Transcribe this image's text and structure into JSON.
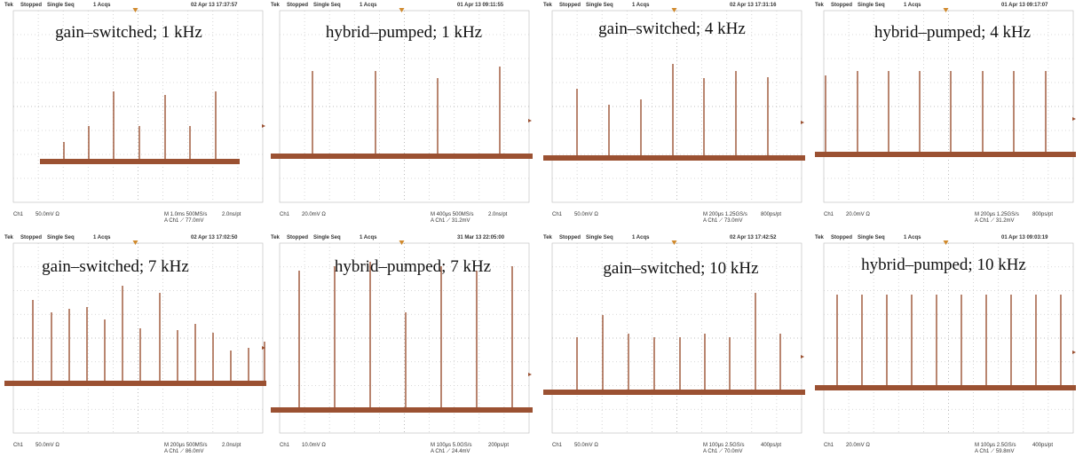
{
  "panels": [
    {
      "header": {
        "tek": "Tek",
        "status": "Stopped",
        "mode": "Single Seq",
        "acqs": "1 Acqs",
        "date": "02 Apr 13 17:37:57"
      },
      "title": "gain–switched; 1 kHz",
      "footer": {
        "channel": "Ch1",
        "scale": "50.0mV Ω",
        "timebase": "M 1.0ms 500MS/s",
        "resolution": "2.0ns/pt",
        "trigger": "A Ch1 ⟋ 77.0mV"
      }
    },
    {
      "header": {
        "tek": "Tek",
        "status": "Stopped",
        "mode": "Single Seq",
        "acqs": "1 Acqs",
        "date": "01 Apr 13 09:11:55"
      },
      "title": "hybrid–pumped; 1 kHz",
      "footer": {
        "channel": "Ch1",
        "scale": "20.0mV Ω",
        "timebase": "M 400μs 500MS/s",
        "resolution": "2.0ns/pt",
        "trigger": "A Ch1 ⟋ 31.2mV"
      }
    },
    {
      "header": {
        "tek": "Tek",
        "status": "Stopped",
        "mode": "Single Seq",
        "acqs": "1 Acqs",
        "date": "02 Apr 13 17:31:16"
      },
      "title": "gain–switched; 4 kHz",
      "footer": {
        "channel": "Ch1",
        "scale": "50.0mV Ω",
        "timebase": "M 200μs 1.25GS/s",
        "resolution": "800ps/pt",
        "trigger": "A Ch1 ⟋ 73.0mV"
      }
    },
    {
      "header": {
        "tek": "Tek",
        "status": "Stopped",
        "mode": "Single Seq",
        "acqs": "1 Acqs",
        "date": "01 Apr 13 09:17:07"
      },
      "title": "hybrid–pumped; 4 kHz",
      "footer": {
        "channel": "Ch1",
        "scale": "20.0mV Ω",
        "timebase": "M 200μs 1.25GS/s",
        "resolution": "800ps/pt",
        "trigger": "A Ch1 ⟋ 31.2mV"
      }
    },
    {
      "header": {
        "tek": "Tek",
        "status": "Stopped",
        "mode": "Single Seq",
        "acqs": "1 Acqs",
        "date": "02 Apr 13 17:02:50"
      },
      "title": "gain–switched; 7 kHz",
      "footer": {
        "channel": "Ch1",
        "scale": "50.0mV Ω",
        "timebase": "M 200μs 500MS/s",
        "resolution": "2.0ns/pt",
        "trigger": "A Ch1 ⟋ 86.0mV"
      }
    },
    {
      "header": {
        "tek": "Tek",
        "status": "Stopped",
        "mode": "Single Seq",
        "acqs": "1 Acqs",
        "date": "31 Mar 13 22:05:00"
      },
      "title": "hybrid–pumped; 7 kHz",
      "footer": {
        "channel": "Ch1",
        "scale": "10.0mV Ω",
        "timebase": "M 100μs 5.0GS/s",
        "resolution": "200ps/pt",
        "trigger": "A Ch1 ⟋ 24.4mV"
      }
    },
    {
      "header": {
        "tek": "Tek",
        "status": "Stopped",
        "mode": "Single Seq",
        "acqs": "1 Acqs",
        "date": "02 Apr 13 17:42:52"
      },
      "title": "gain–switched; 10 kHz",
      "footer": {
        "channel": "Ch1",
        "scale": "50.0mV Ω",
        "timebase": "M 100μs 2.5GS/s",
        "resolution": "400ps/pt",
        "trigger": "A Ch1 ⟋ 70.0mV"
      }
    },
    {
      "header": {
        "tek": "Tek",
        "status": "Stopped",
        "mode": "Single Seq",
        "acqs": "1 Acqs",
        "date": "01 Apr 13 09:03:19"
      },
      "title": "hybrid–pumped; 10 kHz",
      "footer": {
        "channel": "Ch1",
        "scale": "20.0mV Ω",
        "timebase": "M 100μs 2.5GS/s",
        "resolution": "400ps/pt",
        "trigger": "A Ch1 ⟋ 59.8mV"
      }
    }
  ]
}
